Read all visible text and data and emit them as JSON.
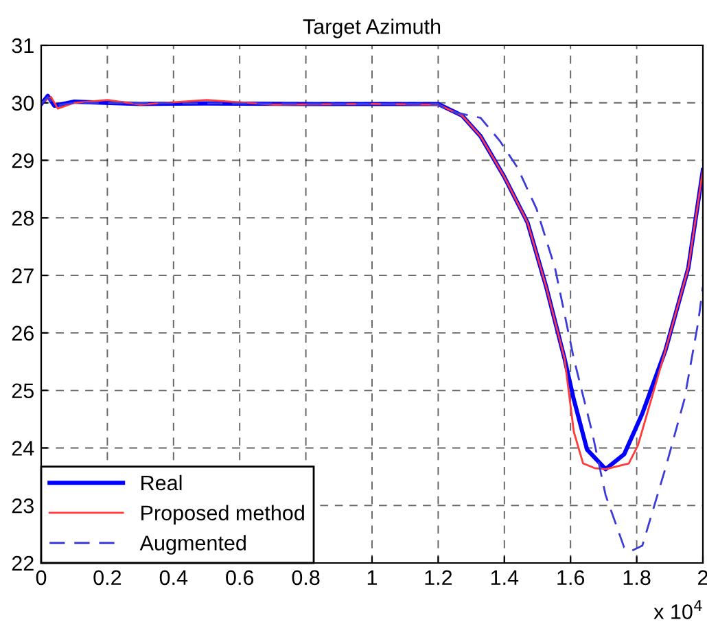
{
  "chart_data": {
    "type": "line",
    "title": "Target Azimuth",
    "annotations": [
      "x 10$^{4}$"
    ],
    "xlim": [
      0,
      2
    ],
    "xticks": [
      0,
      0.2,
      0.4,
      0.6,
      0.8,
      1,
      1.2,
      1.4,
      1.6,
      1.8,
      2
    ],
    "ylim": [
      22,
      31
    ],
    "yticks": [
      22,
      23,
      24,
      25,
      26,
      27,
      28,
      29,
      30,
      31
    ],
    "grid": true,
    "legend": "bottom left",
    "series": [
      {
        "name": "Real",
        "color": "#0000ff",
        "line_style": "solid",
        "x": [
          0,
          0.02,
          0.04,
          0.1,
          0.3,
          0.5,
          0.8,
          1.0,
          1.2,
          1.272,
          1.328,
          1.4,
          1.47,
          1.526,
          1.582,
          1.61,
          1.65,
          1.706,
          1.762,
          1.817,
          1.887,
          1.956,
          2.0
        ],
        "values": [
          29.98,
          30.12,
          29.95,
          30.02,
          29.98,
          29.99,
          29.98,
          29.98,
          29.98,
          29.78,
          29.42,
          28.71,
          27.92,
          26.81,
          25.55,
          24.84,
          23.97,
          23.63,
          23.89,
          24.6,
          25.7,
          27.13,
          28.83
        ]
      },
      {
        "name": "Proposed method",
        "color": "#ff3b3b",
        "line_style": "solid",
        "x": [
          0,
          0.03,
          0.05,
          0.1,
          0.2,
          0.3,
          0.5,
          0.7,
          1.0,
          1.2,
          1.272,
          1.328,
          1.4,
          1.47,
          1.526,
          1.582,
          1.61,
          1.638,
          1.673,
          1.706,
          1.776,
          1.804,
          1.887,
          1.956,
          2.0
        ],
        "values": [
          30.0,
          30.1,
          29.9,
          30.0,
          30.05,
          29.97,
          30.05,
          29.97,
          29.98,
          29.97,
          29.78,
          29.42,
          28.71,
          27.92,
          26.81,
          25.55,
          24.28,
          23.73,
          23.65,
          23.63,
          23.73,
          24.05,
          25.7,
          27.13,
          28.83
        ]
      },
      {
        "name": "Augmented",
        "color": "#3b3bdb",
        "line_style": "dashed",
        "x": [
          0,
          0.02,
          0.04,
          0.1,
          0.5,
          1.0,
          1.2,
          1.228,
          1.328,
          1.386,
          1.44,
          1.497,
          1.553,
          1.61,
          1.665,
          1.706,
          1.762,
          1.78,
          1.817,
          1.887,
          1.944,
          1.986,
          2.0
        ],
        "values": [
          29.98,
          30.1,
          29.95,
          30.0,
          29.99,
          29.98,
          29.98,
          29.86,
          29.74,
          29.34,
          28.87,
          28.16,
          27.13,
          25.55,
          24.28,
          23.18,
          22.27,
          22.2,
          22.3,
          23.65,
          24.84,
          26.19,
          26.8
        ]
      }
    ]
  }
}
